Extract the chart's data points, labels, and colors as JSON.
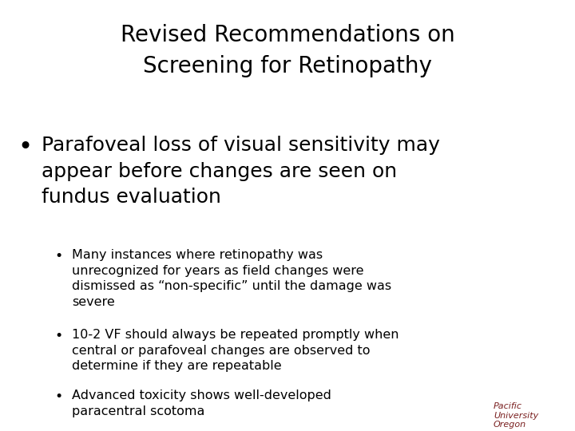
{
  "title_line1": "Revised Recommendations on",
  "title_line2": "Screening for Retinopathy",
  "title_fontsize": 20,
  "title_color": "#000000",
  "bg_color": "#ffffff",
  "bullet1_text": "Parafoveal loss of visual sensitivity may\nappear before changes are seen on\nfundus evaluation",
  "bullet1_fontsize": 18,
  "sub_bullet1": "Many instances where retinopathy was\nunrecognized for years as field changes were\ndismissed as “non-specific” until the damage was\nsevere",
  "sub_bullet2": "10-2 VF should always be repeated promptly when\ncentral or parafoveal changes are observed to\ndetermine if they are repeatable",
  "sub_bullet3": "Advanced toxicity shows well-developed\nparacentral scotoma",
  "sub_fontsize": 11.5,
  "logo_text": "Pacific\nUniversity\nOregon",
  "logo_color": "#7a2020",
  "logo_fontsize": 8
}
